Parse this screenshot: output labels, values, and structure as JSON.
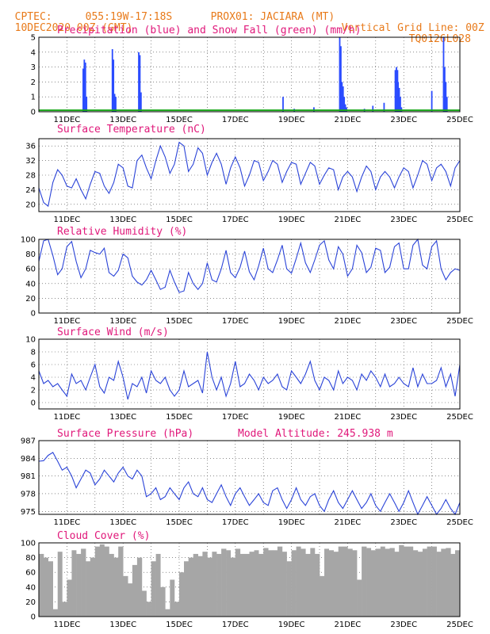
{
  "header": {
    "org": "CPTEC:",
    "coords": "055:19W-17:18S",
    "location": "PROX01: JACIARA (MT)",
    "date": "10DEC2020 00Z (GMT)",
    "grid_note": "Vertical Grid Line: 00Z",
    "code": "TQ0126L028"
  },
  "colors": {
    "precip": "#2b4cff",
    "snow": "#1aa81a",
    "line": "#2b44d8",
    "cloud": "#a6a6a6",
    "title": "#e0187a",
    "header": "#e87a1a"
  },
  "x_ticks": [
    "11DEC",
    "13DEC",
    "15DEC",
    "17DEC",
    "19DEC",
    "21DEC",
    "23DEC",
    "25DEC"
  ],
  "chart_data": [
    {
      "type": "bar",
      "title": "Precipitation (blue) and Snow Fall (green) (mm/h)",
      "ylim": [
        0,
        5
      ],
      "yticks": [
        0,
        1,
        2,
        3,
        4,
        5
      ],
      "series": [
        {
          "x": [
            1.58,
            1.62,
            1.66,
            1.7,
            2.62,
            2.66,
            2.7,
            2.74,
            3.56,
            3.6,
            3.64,
            8.7,
            9.1,
            9.8,
            10.72,
            10.76,
            10.8,
            10.84,
            10.88,
            10.92,
            10.96,
            11.6,
            11.9,
            12.3,
            12.7,
            12.74,
            12.78,
            12.8,
            12.84,
            12.88,
            12.92,
            14.0,
            14.42,
            14.46,
            14.5,
            14.54
          ],
          "values": [
            2.9,
            3.5,
            3.3,
            1.0,
            4.2,
            3.5,
            1.2,
            1.0,
            4.0,
            3.8,
            1.3,
            1.0,
            0.2,
            0.3,
            5.0,
            4.4,
            2.0,
            1.7,
            1.0,
            0.5,
            0.3,
            0.2,
            0.4,
            0.6,
            2.8,
            3.0,
            2.8,
            2.0,
            1.6,
            1.0,
            0.3,
            1.4,
            5.0,
            3.0,
            2.0,
            1.0
          ]
        },
        {
          "x": [
            0,
            15
          ],
          "values": [
            0.1,
            0.1
          ]
        }
      ]
    },
    {
      "type": "line",
      "title": "Surface Temperature (nC)",
      "ylim": [
        18,
        38
      ],
      "yticks": [
        20,
        24,
        28,
        32,
        36
      ],
      "series": [
        {
          "x": [
            0,
            0.17,
            0.33,
            0.5,
            0.67,
            0.83,
            1.0,
            1.17,
            1.33,
            1.5,
            1.67,
            1.83,
            2.0,
            2.17,
            2.33,
            2.5,
            2.67,
            2.83,
            3.0,
            3.17,
            3.33,
            3.5,
            3.67,
            3.83,
            4.0,
            4.17,
            4.33,
            4.5,
            4.67,
            4.83,
            5.0,
            5.17,
            5.33,
            5.5,
            5.67,
            5.83,
            6.0,
            6.17,
            6.33,
            6.5,
            6.67,
            6.83,
            7.0,
            7.17,
            7.33,
            7.5,
            7.67,
            7.83,
            8.0,
            8.17,
            8.33,
            8.5,
            8.67,
            8.83,
            9.0,
            9.17,
            9.33,
            9.5,
            9.67,
            9.83,
            10.0,
            10.17,
            10.33,
            10.5,
            10.67,
            10.83,
            11.0,
            11.17,
            11.33,
            11.5,
            11.67,
            11.83,
            12.0,
            12.17,
            12.33,
            12.5,
            12.67,
            12.83,
            13.0,
            13.17,
            13.33,
            13.5,
            13.67,
            13.83,
            14.0,
            14.17,
            14.33,
            14.5,
            14.67,
            14.83,
            15.0
          ],
          "values": [
            24.5,
            20.5,
            19.5,
            26.0,
            29.5,
            28.0,
            25.0,
            24.5,
            27.0,
            24.0,
            21.5,
            25.5,
            29.0,
            28.5,
            25.0,
            23.0,
            26.0,
            31.0,
            30.0,
            25.0,
            24.5,
            32.0,
            33.5,
            30.0,
            27.0,
            32.0,
            36.0,
            33.0,
            28.5,
            31.0,
            37.0,
            36.0,
            29.0,
            31.0,
            35.5,
            34.0,
            28.0,
            31.5,
            34.0,
            31.0,
            25.5,
            30.0,
            33.0,
            30.0,
            25.0,
            28.0,
            32.0,
            31.5,
            26.5,
            29.0,
            32.0,
            31.0,
            26.0,
            29.0,
            31.5,
            31.0,
            25.5,
            28.5,
            31.5,
            30.5,
            25.5,
            28.0,
            30.0,
            29.5,
            24.0,
            27.5,
            29.0,
            27.5,
            23.5,
            27.5,
            30.5,
            29.0,
            24.0,
            27.5,
            29.0,
            27.5,
            24.5,
            27.5,
            30.0,
            29.0,
            24.5,
            28.0,
            32.0,
            31.0,
            26.5,
            30.0,
            31.0,
            29.0,
            25.0,
            30.0,
            32.0
          ]
        }
      ]
    },
    {
      "type": "line",
      "title": "Relative Humidity (%)",
      "ylim": [
        0,
        100
      ],
      "yticks": [
        0,
        20,
        40,
        60,
        80,
        100
      ],
      "series": [
        {
          "x": [
            0,
            0.17,
            0.33,
            0.5,
            0.67,
            0.83,
            1.0,
            1.17,
            1.33,
            1.5,
            1.67,
            1.83,
            2.0,
            2.17,
            2.33,
            2.5,
            2.67,
            2.83,
            3.0,
            3.17,
            3.33,
            3.5,
            3.67,
            3.83,
            4.0,
            4.17,
            4.33,
            4.5,
            4.67,
            4.83,
            5.0,
            5.17,
            5.33,
            5.5,
            5.67,
            5.83,
            6.0,
            6.17,
            6.33,
            6.5,
            6.67,
            6.83,
            7.0,
            7.17,
            7.33,
            7.5,
            7.67,
            7.83,
            8.0,
            8.17,
            8.33,
            8.5,
            8.67,
            8.83,
            9.0,
            9.17,
            9.33,
            9.5,
            9.67,
            9.83,
            10.0,
            10.17,
            10.33,
            10.5,
            10.67,
            10.83,
            11.0,
            11.17,
            11.33,
            11.5,
            11.67,
            11.83,
            12.0,
            12.17,
            12.33,
            12.5,
            12.67,
            12.83,
            13.0,
            13.17,
            13.33,
            13.5,
            13.67,
            13.83,
            14.0,
            14.17,
            14.33,
            14.5,
            14.67,
            14.83,
            15.0
          ],
          "values": [
            70,
            98,
            100,
            78,
            52,
            60,
            90,
            97,
            70,
            48,
            60,
            85,
            82,
            80,
            88,
            55,
            50,
            58,
            80,
            75,
            50,
            42,
            38,
            45,
            58,
            45,
            32,
            35,
            58,
            42,
            28,
            30,
            55,
            40,
            32,
            40,
            68,
            45,
            42,
            60,
            85,
            55,
            48,
            62,
            84,
            56,
            45,
            64,
            88,
            60,
            55,
            72,
            92,
            60,
            54,
            74,
            95,
            68,
            55,
            72,
            92,
            98,
            72,
            60,
            90,
            80,
            50,
            60,
            92,
            82,
            55,
            62,
            88,
            85,
            55,
            62,
            90,
            95,
            60,
            60,
            92,
            100,
            65,
            60,
            90,
            98,
            60,
            45,
            55,
            60,
            58
          ]
        }
      ]
    },
    {
      "type": "line",
      "title": "Surface Wind (m/s)",
      "ylim": [
        -1,
        10
      ],
      "yticks": [
        0,
        2,
        4,
        6,
        8,
        10
      ],
      "series": [
        {
          "x": [
            0,
            0.17,
            0.33,
            0.5,
            0.67,
            0.83,
            1.0,
            1.17,
            1.33,
            1.5,
            1.67,
            1.83,
            2.0,
            2.17,
            2.33,
            2.5,
            2.67,
            2.83,
            3.0,
            3.17,
            3.33,
            3.5,
            3.67,
            3.83,
            4.0,
            4.17,
            4.33,
            4.5,
            4.67,
            4.83,
            5.0,
            5.17,
            5.33,
            5.5,
            5.67,
            5.83,
            6.0,
            6.17,
            6.33,
            6.5,
            6.67,
            6.83,
            7.0,
            7.17,
            7.33,
            7.5,
            7.67,
            7.83,
            8.0,
            8.17,
            8.33,
            8.5,
            8.67,
            8.83,
            9.0,
            9.17,
            9.33,
            9.5,
            9.67,
            9.83,
            10.0,
            10.17,
            10.33,
            10.5,
            10.67,
            10.83,
            11.0,
            11.17,
            11.33,
            11.5,
            11.67,
            11.83,
            12.0,
            12.17,
            12.33,
            12.5,
            12.67,
            12.83,
            13.0,
            13.17,
            13.33,
            13.5,
            13.67,
            13.83,
            14.0,
            14.17,
            14.33,
            14.5,
            14.67,
            14.83,
            15.0
          ],
          "values": [
            5.0,
            3.0,
            3.5,
            2.5,
            3.0,
            2.0,
            1.0,
            4.5,
            3.0,
            3.5,
            2.0,
            4.0,
            6.0,
            2.5,
            1.5,
            4.0,
            3.5,
            6.5,
            4.0,
            0.5,
            3.0,
            2.5,
            4.0,
            1.5,
            5.0,
            3.5,
            3.0,
            4.0,
            2.0,
            1.0,
            2.0,
            5.0,
            2.5,
            3.0,
            3.5,
            1.5,
            8.0,
            4.0,
            2.0,
            4.0,
            1.0,
            3.0,
            6.5,
            2.5,
            3.0,
            4.5,
            3.5,
            2.0,
            4.0,
            3.0,
            3.5,
            4.5,
            2.5,
            2.0,
            5.0,
            4.0,
            3.0,
            4.5,
            6.5,
            3.5,
            2.0,
            4.0,
            3.5,
            2.0,
            5.0,
            3.0,
            4.0,
            3.5,
            2.0,
            4.5,
            3.5,
            5.0,
            4.0,
            2.5,
            4.5,
            2.5,
            3.0,
            4.0,
            3.0,
            2.5,
            5.5,
            2.5,
            4.5,
            3.0,
            3.0,
            3.5,
            5.5,
            2.5,
            4.5,
            1.0,
            6.0
          ]
        }
      ]
    },
    {
      "type": "line",
      "title": "Surface Pressure (hPa)",
      "subtitle": "Model Altitude: 245.938 m",
      "ylim": [
        974.5,
        987
      ],
      "yticks": [
        975,
        978,
        981,
        984,
        987
      ],
      "series": [
        {
          "x": [
            0,
            0.17,
            0.33,
            0.5,
            0.67,
            0.83,
            1.0,
            1.17,
            1.33,
            1.5,
            1.67,
            1.83,
            2.0,
            2.17,
            2.33,
            2.5,
            2.67,
            2.83,
            3.0,
            3.17,
            3.33,
            3.5,
            3.67,
            3.83,
            4.0,
            4.17,
            4.33,
            4.5,
            4.67,
            4.83,
            5.0,
            5.17,
            5.33,
            5.5,
            5.67,
            5.83,
            6.0,
            6.17,
            6.33,
            6.5,
            6.67,
            6.83,
            7.0,
            7.17,
            7.33,
            7.5,
            7.67,
            7.83,
            8.0,
            8.17,
            8.33,
            8.5,
            8.67,
            8.83,
            9.0,
            9.17,
            9.33,
            9.5,
            9.67,
            9.83,
            10.0,
            10.17,
            10.33,
            10.5,
            10.67,
            10.83,
            11.0,
            11.17,
            11.33,
            11.5,
            11.67,
            11.83,
            12.0,
            12.17,
            12.33,
            12.5,
            12.67,
            12.83,
            13.0,
            13.17,
            13.33,
            13.5,
            13.67,
            13.83,
            14.0,
            14.17,
            14.33,
            14.5,
            14.67,
            14.83,
            15.0
          ],
          "values": [
            983.5,
            983.6,
            984.5,
            985.0,
            983.5,
            982.0,
            982.5,
            981.0,
            979.0,
            980.5,
            982.0,
            981.5,
            979.5,
            980.5,
            982.0,
            981.0,
            980.0,
            981.5,
            982.5,
            981.0,
            980.5,
            982.0,
            981.0,
            977.5,
            978.0,
            979.0,
            977.0,
            977.5,
            979.0,
            978.0,
            977.0,
            979.0,
            980.0,
            978.0,
            977.5,
            979.0,
            977.0,
            976.5,
            978.0,
            979.5,
            977.5,
            976.0,
            978.0,
            979.0,
            977.5,
            976.0,
            977.0,
            978.0,
            976.5,
            976.0,
            978.5,
            979.0,
            977.0,
            975.5,
            977.0,
            979.0,
            977.0,
            976.0,
            977.5,
            978.0,
            976.0,
            975.0,
            977.0,
            978.5,
            976.5,
            975.5,
            977.0,
            978.5,
            977.0,
            975.5,
            976.5,
            978.0,
            976.0,
            975.0,
            976.5,
            978.0,
            976.5,
            975.0,
            976.5,
            978.5,
            976.5,
            974.5,
            976.0,
            977.5,
            976.0,
            974.5,
            975.5,
            977.0,
            975.5,
            974.5,
            976.5
          ]
        }
      ]
    },
    {
      "type": "area",
      "title": "Cloud Cover (%)",
      "ylim": [
        0,
        100
      ],
      "yticks": [
        0,
        20,
        40,
        60,
        80,
        100
      ],
      "series": [
        {
          "x": [
            0,
            0.17,
            0.33,
            0.5,
            0.67,
            0.83,
            1.0,
            1.17,
            1.33,
            1.5,
            1.67,
            1.83,
            2.0,
            2.17,
            2.33,
            2.5,
            2.67,
            2.83,
            3.0,
            3.17,
            3.33,
            3.5,
            3.67,
            3.83,
            4.0,
            4.17,
            4.33,
            4.5,
            4.67,
            4.83,
            5.0,
            5.17,
            5.33,
            5.5,
            5.67,
            5.83,
            6.0,
            6.17,
            6.33,
            6.5,
            6.67,
            6.83,
            7.0,
            7.17,
            7.33,
            7.5,
            7.67,
            7.83,
            8.0,
            8.17,
            8.33,
            8.5,
            8.67,
            8.83,
            9.0,
            9.17,
            9.33,
            9.5,
            9.67,
            9.83,
            10.0,
            10.17,
            10.33,
            10.5,
            10.67,
            10.83,
            11.0,
            11.17,
            11.33,
            11.5,
            11.67,
            11.83,
            12.0,
            12.17,
            12.33,
            12.5,
            12.67,
            12.83,
            13.0,
            13.17,
            13.33,
            13.5,
            13.67,
            13.83,
            14.0,
            14.17,
            14.33,
            14.5,
            14.67,
            14.83,
            15.0
          ],
          "values": [
            85,
            80,
            75,
            10,
            88,
            20,
            50,
            90,
            85,
            92,
            75,
            80,
            95,
            98,
            95,
            85,
            80,
            95,
            55,
            45,
            70,
            80,
            35,
            20,
            75,
            85,
            40,
            10,
            50,
            20,
            60,
            75,
            80,
            85,
            82,
            88,
            80,
            88,
            85,
            92,
            90,
            80,
            92,
            85,
            85,
            88,
            90,
            85,
            93,
            90,
            90,
            95,
            88,
            75,
            90,
            95,
            92,
            85,
            93,
            85,
            55,
            92,
            90,
            88,
            95,
            95,
            92,
            90,
            50,
            95,
            93,
            90,
            92,
            95,
            92,
            93,
            88,
            97,
            95,
            95,
            90,
            88,
            92,
            95,
            95,
            88,
            92,
            93,
            85,
            90,
            88
          ]
        }
      ]
    }
  ]
}
